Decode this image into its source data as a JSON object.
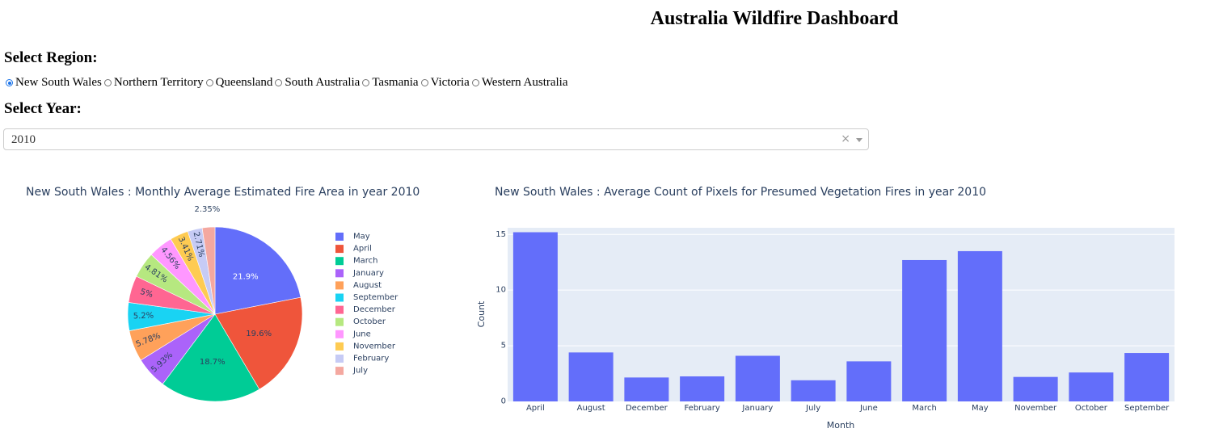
{
  "page": {
    "title": "Australia Wildfire Dashboard"
  },
  "region": {
    "label": "Select Region:",
    "options": [
      "New South Wales",
      "Northern Territory",
      "Queensland",
      "South Australia",
      "Tasmania",
      "Victoria",
      "Western Australia"
    ],
    "selected": "New South Wales"
  },
  "year": {
    "label": "Select Year:",
    "value": "2010",
    "clear_icon": "×"
  },
  "chart_data": [
    {
      "type": "pie",
      "title": "New South Wales : Monthly Average Estimated Fire Area in year 2010",
      "labels": [
        "May",
        "April",
        "March",
        "January",
        "August",
        "September",
        "December",
        "October",
        "June",
        "November",
        "February",
        "July"
      ],
      "values": [
        21.9,
        19.6,
        18.7,
        5.93,
        5.78,
        5.2,
        5,
        4.81,
        4.56,
        3.41,
        2.71,
        2.35
      ],
      "value_labels": [
        "21.9%",
        "19.6%",
        "18.7%",
        "5.93%",
        "5.78%",
        "5.2%",
        "5%",
        "4.81%",
        "4.56%",
        "3.41%",
        "2.71%",
        "2.35%"
      ],
      "colors": [
        "#636efa",
        "#EF553B",
        "#00cc96",
        "#ab63fa",
        "#FFA15A",
        "#19d3f3",
        "#FF6692",
        "#B6E880",
        "#FF97FF",
        "#FECB52",
        "#c6cbf5",
        "#f4a8a0"
      ],
      "legend": "right"
    },
    {
      "type": "bar",
      "title": "New South Wales : Average Count of Pixels for Presumed Vegetation Fires in year 2010",
      "categories": [
        "April",
        "August",
        "December",
        "February",
        "January",
        "July",
        "June",
        "March",
        "May",
        "November",
        "October",
        "September"
      ],
      "values": [
        15.2,
        4.4,
        2.15,
        2.25,
        4.1,
        1.9,
        3.6,
        12.7,
        13.5,
        2.2,
        2.6,
        4.35
      ],
      "xlabel": "Month",
      "ylabel": "Count",
      "ylim": [
        0,
        15.6
      ],
      "yticks": [
        0,
        5,
        10,
        15
      ],
      "color": "#636efa",
      "plot_background": "#e5ecf6",
      "grid": true
    }
  ]
}
